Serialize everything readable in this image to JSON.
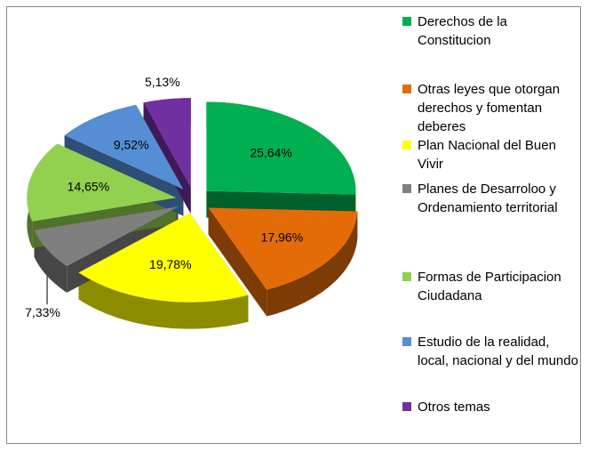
{
  "chart_data": {
    "type": "pie",
    "categories": [
      "Derechos de la Constitucion",
      "Otras leyes que otorgan derechos y fomentan deberes",
      "Plan Nacional del Buen Vivir",
      "Planes de Desarroloo y Ordenamiento territorial",
      "Formas de Participacion Ciudadana",
      "Estudio de la realidad, local, nacional y del mundo",
      "Otros temas"
    ],
    "values": [
      25.64,
      17.96,
      19.78,
      7.33,
      14.65,
      9.52,
      5.13
    ],
    "value_labels": [
      "25,64%",
      "17,96%",
      "19,78%",
      "7,33%",
      "14,65%",
      "9,52%",
      "5,13%"
    ],
    "colors": [
      "#00b050",
      "#e36c09",
      "#ffff00",
      "#7f7f7f",
      "#92d050",
      "#558ed5",
      "#7030a0"
    ],
    "legend": "right"
  }
}
